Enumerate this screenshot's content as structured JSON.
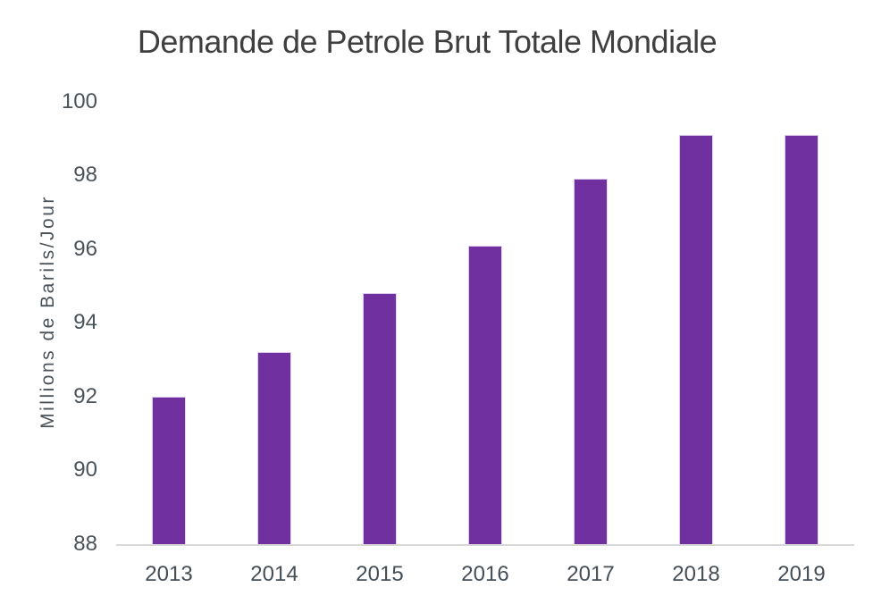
{
  "chart_data": {
    "type": "bar",
    "title": "Demande de Petrole Brut Totale Mondiale",
    "ylabel": "Millions de Barils/Jour",
    "xlabel": "",
    "categories": [
      "2013",
      "2014",
      "2015",
      "2016",
      "2017",
      "2018",
      "2019"
    ],
    "values": [
      92.0,
      93.2,
      94.8,
      96.1,
      97.9,
      99.1,
      99.1
    ],
    "ylim": [
      88,
      100
    ],
    "yticks": [
      88,
      90,
      92,
      94,
      96,
      98,
      100
    ],
    "grid": "off",
    "legend": "none",
    "bar_color": "#7030A0",
    "axis_line_color": "#d8d8d8",
    "title_color": "#3f3f3f",
    "tick_label_color": "#4a525a"
  }
}
